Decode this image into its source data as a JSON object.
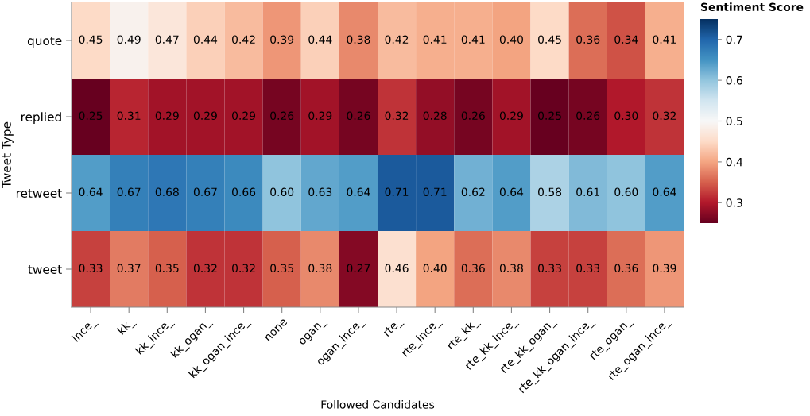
{
  "chart_data": {
    "type": "heatmap",
    "xlabel": "Followed Candidates",
    "ylabel": "Tweet Type",
    "clabel": "Sentiment Score",
    "categories": [
      "ince_",
      "kk_",
      "kk_ince_",
      "kk_ogan_",
      "kk_ogan_ince_",
      "none",
      "ogan_",
      "ogan_ince_",
      "rte_",
      "rte_ince_",
      "rte_kk_",
      "rte_kk_ince_",
      "rte_kk_ogan_",
      "rte_kk_ogan_ince_",
      "rte_ogan_",
      "rte_ogan_ince_"
    ],
    "y_categories": [
      "quote",
      "replied",
      "retweet",
      "tweet"
    ],
    "cells": [
      [
        0.45,
        0.49,
        0.47,
        0.44,
        0.42,
        0.39,
        0.44,
        0.38,
        0.42,
        0.41,
        0.41,
        0.4,
        0.45,
        0.36,
        0.34,
        0.41
      ],
      [
        0.25,
        0.31,
        0.29,
        0.29,
        0.29,
        0.26,
        0.29,
        0.26,
        0.32,
        0.28,
        0.26,
        0.29,
        0.25,
        0.26,
        0.3,
        0.32
      ],
      [
        0.64,
        0.67,
        0.68,
        0.67,
        0.66,
        0.6,
        0.63,
        0.64,
        0.71,
        0.71,
        0.62,
        0.64,
        0.58,
        0.61,
        0.6,
        0.64
      ],
      [
        0.33,
        0.37,
        0.35,
        0.32,
        0.32,
        0.35,
        0.38,
        0.27,
        0.46,
        0.4,
        0.36,
        0.38,
        0.33,
        0.33,
        0.36,
        0.39
      ]
    ],
    "cell_labels": [
      [
        "0.45",
        "0.49",
        "0.47",
        "0.44",
        "0.42",
        "0.39",
        "0.44",
        "0.38",
        "0.42",
        "0.41",
        "0.41",
        "0.40",
        "0.45",
        "0.36",
        "0.34",
        "0.41"
      ],
      [
        "0.25",
        "0.31",
        "0.29",
        "0.29",
        "0.29",
        "0.26",
        "0.29",
        "0.26",
        "0.32",
        "0.28",
        "0.26",
        "0.29",
        "0.25",
        "0.26",
        "0.30",
        "0.32"
      ],
      [
        "0.64",
        "0.67",
        "0.68",
        "0.67",
        "0.66",
        "0.60",
        "0.63",
        "0.64",
        "0.71",
        "0.71",
        "0.62",
        "0.64",
        "0.58",
        "0.61",
        "0.60",
        "0.64"
      ],
      [
        "0.33",
        "0.37",
        "0.35",
        "0.32",
        "0.32",
        "0.35",
        "0.38",
        "0.27",
        "0.46",
        "0.40",
        "0.36",
        "0.38",
        "0.33",
        "0.33",
        "0.36",
        "0.39"
      ]
    ],
    "clim": [
      0.25,
      0.75
    ],
    "cticks": [
      0.3,
      0.4,
      0.5,
      0.6,
      0.7
    ],
    "grid": false
  }
}
